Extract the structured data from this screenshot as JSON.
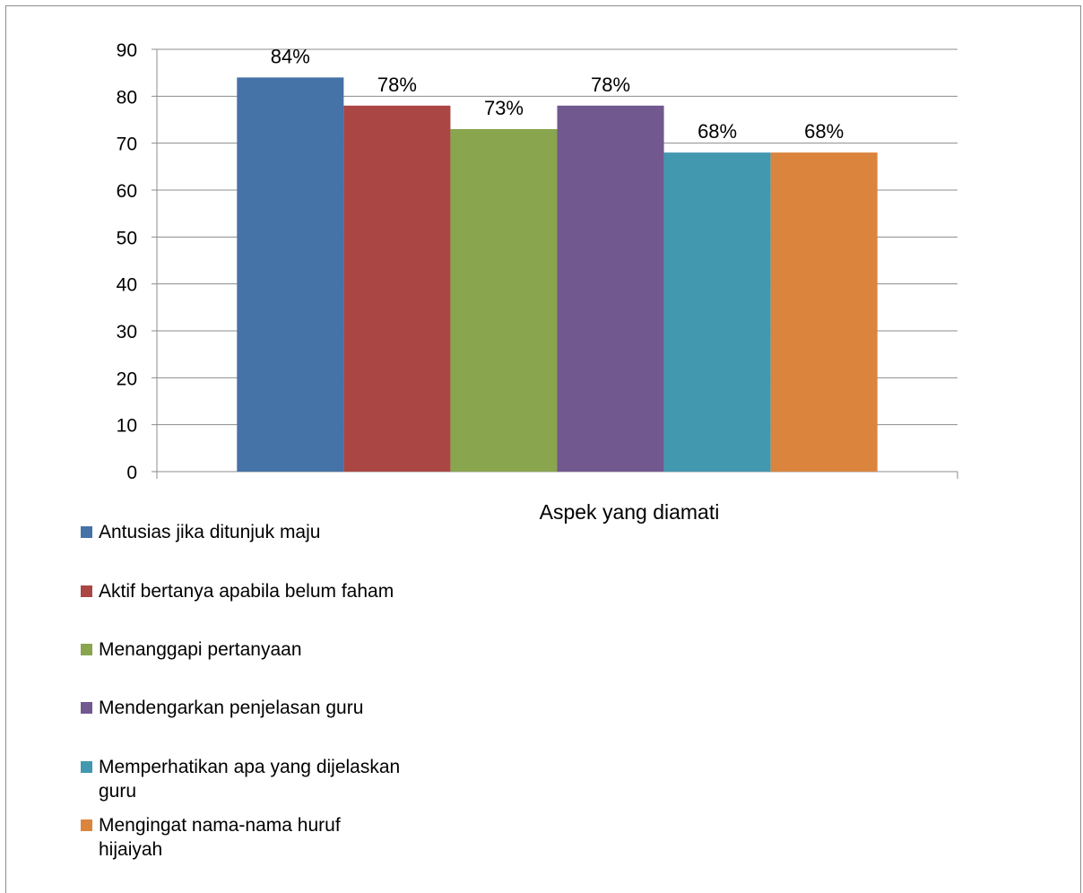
{
  "chart_data": {
    "type": "bar",
    "title": "",
    "xlabel": "Aspek yang diamati",
    "ylabel": "",
    "ylim": [
      0,
      90
    ],
    "yticks": [
      0,
      10,
      20,
      30,
      40,
      50,
      60,
      70,
      80,
      90
    ],
    "grid": true,
    "legend_position": "bottom-left",
    "categories": [
      "Aspek yang diamati"
    ],
    "series": [
      {
        "name": "Antusias jika ditunjuk maju",
        "values": [
          84
        ],
        "label": "84%",
        "color": "#4572A7"
      },
      {
        "name": "Aktif bertanya apabila belum faham",
        "values": [
          78
        ],
        "label": "78%",
        "color": "#AA4643"
      },
      {
        "name": "Menanggapi pertanyaan",
        "values": [
          73
        ],
        "label": "73%",
        "color": "#89A54E"
      },
      {
        "name": "Mendengarkan penjelasan guru",
        "values": [
          78
        ],
        "label": "78%",
        "color": "#71588F"
      },
      {
        "name": "Memperhatikan apa yang dijelaskan guru",
        "values": [
          68
        ],
        "label": "68%",
        "color": "#4198AF"
      },
      {
        "name": "Mengingat nama-nama huruf hijaiyah",
        "values": [
          68
        ],
        "label": "68%",
        "color": "#DB843D"
      }
    ]
  }
}
